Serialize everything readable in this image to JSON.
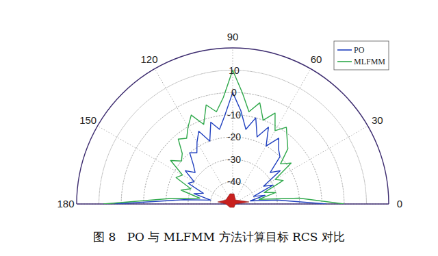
{
  "chart_data": {
    "type": "polar",
    "title": "图 8   PO 与 MLFMM 方法计算目标 RCS 对比",
    "x": [
      0,
      5,
      10,
      15,
      20,
      25,
      30,
      35,
      40,
      45,
      50,
      55,
      60,
      65,
      70,
      75,
      80,
      85,
      90,
      95,
      100,
      105,
      110,
      115,
      120,
      125,
      130,
      135,
      140,
      145,
      150,
      155,
      160,
      165,
      170,
      175,
      180
    ],
    "xlim": [
      0,
      180
    ],
    "xticks": [
      0,
      30,
      60,
      90,
      120,
      150,
      180
    ],
    "ylim": [
      -50,
      20
    ],
    "yticks": [
      -40,
      -30,
      -20,
      -10,
      0,
      10
    ],
    "grid": true,
    "legend": "upper right",
    "series": [
      {
        "name": "PO",
        "color": "#1f3fbf",
        "values": [
          -8,
          -30,
          -42,
          -35,
          -40,
          -30,
          -34,
          -24,
          -28,
          -20,
          -18,
          -14,
          -20,
          -12,
          -18,
          -10,
          -16,
          -8,
          0,
          -10,
          -16,
          -12,
          -20,
          -14,
          -18,
          -22,
          -20,
          -25,
          -28,
          -24,
          -30,
          -28,
          -36,
          -32,
          -40,
          -28,
          3
        ]
      },
      {
        "name": "MLFMM",
        "color": "#2ea84a",
        "values": [
          0,
          -20,
          -38,
          -30,
          -35,
          -25,
          -28,
          -18,
          -22,
          -15,
          -12,
          -8,
          -12,
          -5,
          -10,
          -3,
          -8,
          0,
          10,
          -2,
          -8,
          -4,
          -12,
          -6,
          -10,
          -14,
          -12,
          -18,
          -20,
          -16,
          -24,
          -22,
          -30,
          -26,
          -35,
          -22,
          8
        ]
      }
    ]
  }
}
